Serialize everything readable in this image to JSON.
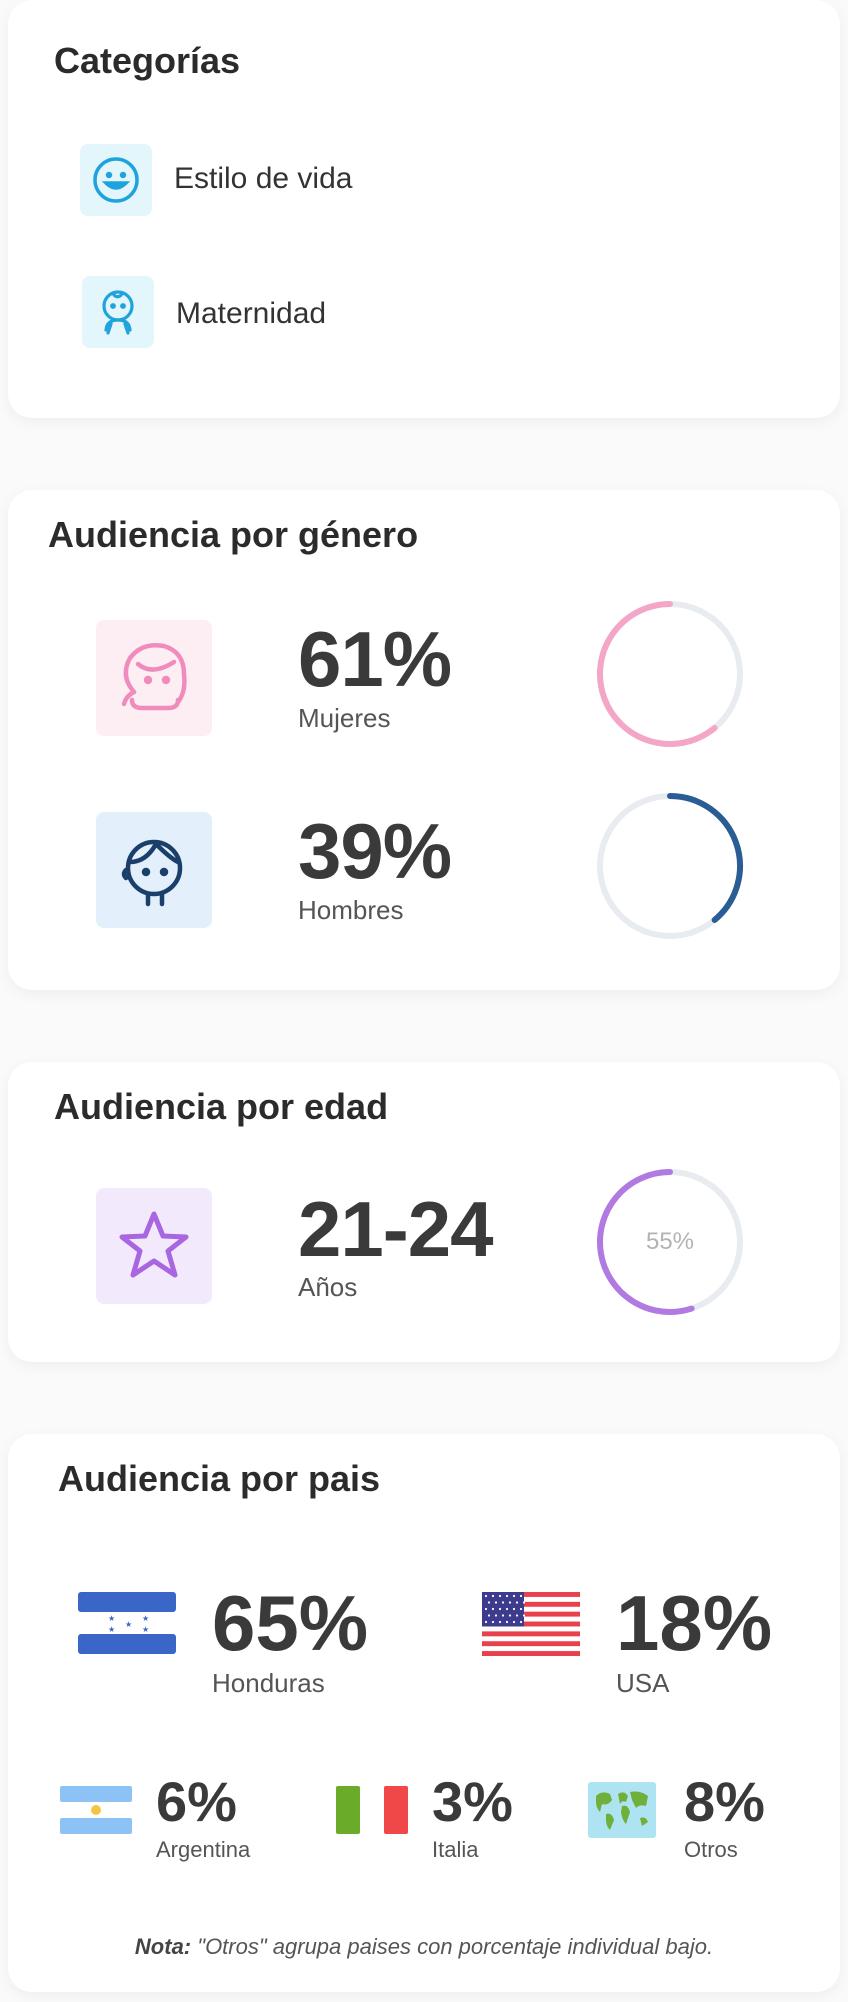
{
  "categories": {
    "title": "Categorías",
    "items": [
      {
        "label": "Estilo de vida",
        "icon": "smiley-icon"
      },
      {
        "label": "Maternidad",
        "icon": "baby-icon"
      }
    ]
  },
  "gender": {
    "title": "Audiencia por género",
    "women": {
      "value": "61%",
      "label": "Mujeres",
      "fraction": 0.61,
      "color": "#f4a6c8",
      "tile_color": "#fdeef4"
    },
    "men": {
      "value": "39%",
      "label": "Hombres",
      "fraction": 0.39,
      "color": "#2a5d94",
      "tile_color": "#e3effb"
    }
  },
  "age": {
    "title": "Audiencia por edad",
    "value": "21-24",
    "label": "Años",
    "ring_label": "55%",
    "fraction": 0.55,
    "color": "#b07ae0",
    "tile_color": "#f3e9fd"
  },
  "country": {
    "title": "Audiencia por pais",
    "items": [
      {
        "value": "65%",
        "name": "Honduras",
        "flag": "honduras-flag"
      },
      {
        "value": "18%",
        "name": "USA",
        "flag": "usa-flag"
      },
      {
        "value": "6%",
        "name": "Argentina",
        "flag": "argentina-flag"
      },
      {
        "value": "3%",
        "name": "Italia",
        "flag": "italy-flag"
      },
      {
        "value": "8%",
        "name": "Otros",
        "flag": "world-map-icon"
      }
    ],
    "note_bold": "Nota:",
    "note_text": " \"Otros\" agrupa paises con porcentaje individual bajo."
  },
  "colors": {
    "ring_track": "#e8ecf0",
    "accent_blue": "#29a8e0"
  }
}
